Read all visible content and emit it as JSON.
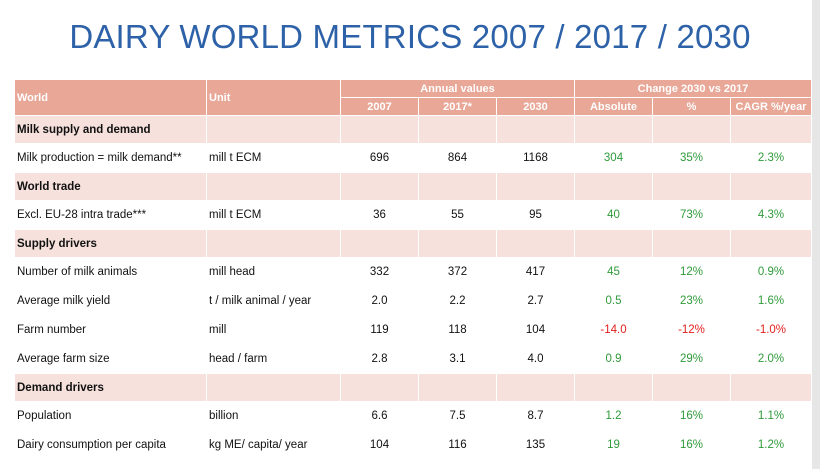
{
  "title": "DAIRY WORLD METRICS 2007 / 2017 / 2030",
  "colors": {
    "title": "#2e62a8",
    "header_bg": "#e8a797",
    "section_bg": "#f6e1dc",
    "positive": "#2f9a3a",
    "negative": "#e0211d"
  },
  "header": {
    "world": "World",
    "unit": "Unit",
    "annual_values": "Annual values",
    "change": "Change 2030 vs 2017",
    "y2007": "2007",
    "y2017": "2017*",
    "y2030": "2030",
    "absolute": "Absolute",
    "percent": "%",
    "cagr": "CAGR %/year"
  },
  "sections": [
    {
      "name": "Milk supply and demand",
      "rows": [
        {
          "label": "Milk production = milk demand**",
          "unit": "mill t ECM",
          "v2007": "696",
          "v2017": "864",
          "v2030": "1168",
          "abs": "304",
          "pct": "35%",
          "cagr": "2.3%",
          "sign": "pos"
        }
      ]
    },
    {
      "name": "World trade",
      "rows": [
        {
          "label": "Excl. EU-28 intra trade***",
          "unit": "mill t ECM",
          "v2007": "36",
          "v2017": "55",
          "v2030": "95",
          "abs": "40",
          "pct": "73%",
          "cagr": "4.3%",
          "sign": "pos"
        }
      ]
    },
    {
      "name": "Supply drivers",
      "rows": [
        {
          "label": "Number of milk animals",
          "unit": "mill head",
          "v2007": "332",
          "v2017": "372",
          "v2030": "417",
          "abs": "45",
          "pct": "12%",
          "cagr": "0.9%",
          "sign": "pos"
        },
        {
          "label": "Average milk yield",
          "unit": "t / milk animal / year",
          "v2007": "2.0",
          "v2017": "2.2",
          "v2030": "2.7",
          "abs": "0.5",
          "pct": "23%",
          "cagr": "1.6%",
          "sign": "pos"
        },
        {
          "label": "Farm number",
          "unit": "mill",
          "v2007": "119",
          "v2017": "118",
          "v2030": "104",
          "abs": "-14.0",
          "pct": "-12%",
          "cagr": "-1.0%",
          "sign": "neg"
        },
        {
          "label": "Average farm size",
          "unit": "head / farm",
          "v2007": "2.8",
          "v2017": "3.1",
          "v2030": "4.0",
          "abs": "0.9",
          "pct": "29%",
          "cagr": "2.0%",
          "sign": "pos"
        }
      ]
    },
    {
      "name": "Demand drivers",
      "rows": [
        {
          "label": "Population",
          "unit": "billion",
          "v2007": "6.6",
          "v2017": "7.5",
          "v2030": "8.7",
          "abs": "1.2",
          "pct": "16%",
          "cagr": "1.1%",
          "sign": "pos"
        },
        {
          "label": "Dairy consumption per capita",
          "unit": "kg ME/ capita/ year",
          "v2007": "104",
          "v2017": "116",
          "v2030": "135",
          "abs": "19",
          "pct": "16%",
          "cagr": "1.2%",
          "sign": "pos"
        }
      ]
    }
  ]
}
